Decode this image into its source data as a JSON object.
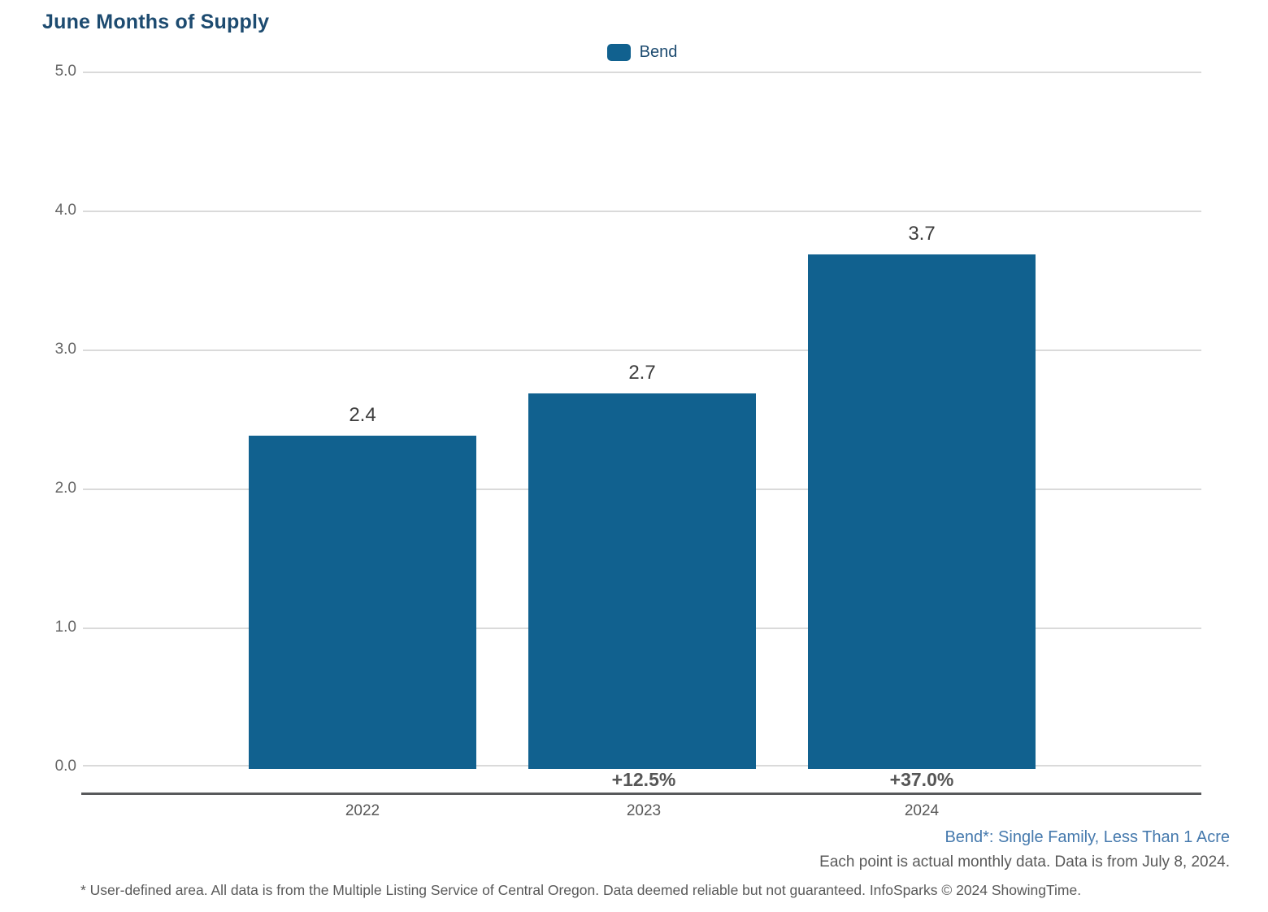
{
  "title": "June Months of Supply",
  "legend": {
    "label": "Bend",
    "swatch_color": "#11618F"
  },
  "chart_data": {
    "type": "bar",
    "title": "June Months of Supply",
    "categories": [
      "2022",
      "2023",
      "2024"
    ],
    "values": [
      2.4,
      2.7,
      3.7
    ],
    "value_labels": [
      "2.4",
      "2.7",
      "3.7"
    ],
    "pct_change_labels": [
      "",
      "+12.5%",
      "+37.0%"
    ],
    "series": [
      {
        "name": "Bend",
        "values": [
          2.4,
          2.7,
          3.7
        ]
      }
    ],
    "xlabel": "",
    "ylabel": "",
    "ylim": [
      0,
      5
    ],
    "yticks": [
      "0.0",
      "1.0",
      "2.0",
      "3.0",
      "4.0",
      "5.0"
    ],
    "grid": "horizontal",
    "legend_position": "top-center",
    "bar_color": "#11618F"
  },
  "notes": {
    "series_note": "Bend*: Single Family, Less Than 1 Acre",
    "data_note": "Each point is actual monthly data. Data is from July 8, 2024.",
    "disclaimer": "* User-defined area. All data is from the Multiple Listing Service of Central Oregon. Data deemed reliable but not guaranteed. InfoSparks © 2024 ShowingTime."
  },
  "colors": {
    "bar": "#11618F",
    "title_text": "#1D4B70",
    "tick_text": "#666666",
    "value_label_text": "#3D3D3D",
    "pct_text": "#565656",
    "year_text": "#595959",
    "grid_line": "#DADADA",
    "axis_line": "#58595B",
    "series_note_text": "#4579AD",
    "footnote_text": "#595959",
    "background": "#FFFFFF"
  }
}
